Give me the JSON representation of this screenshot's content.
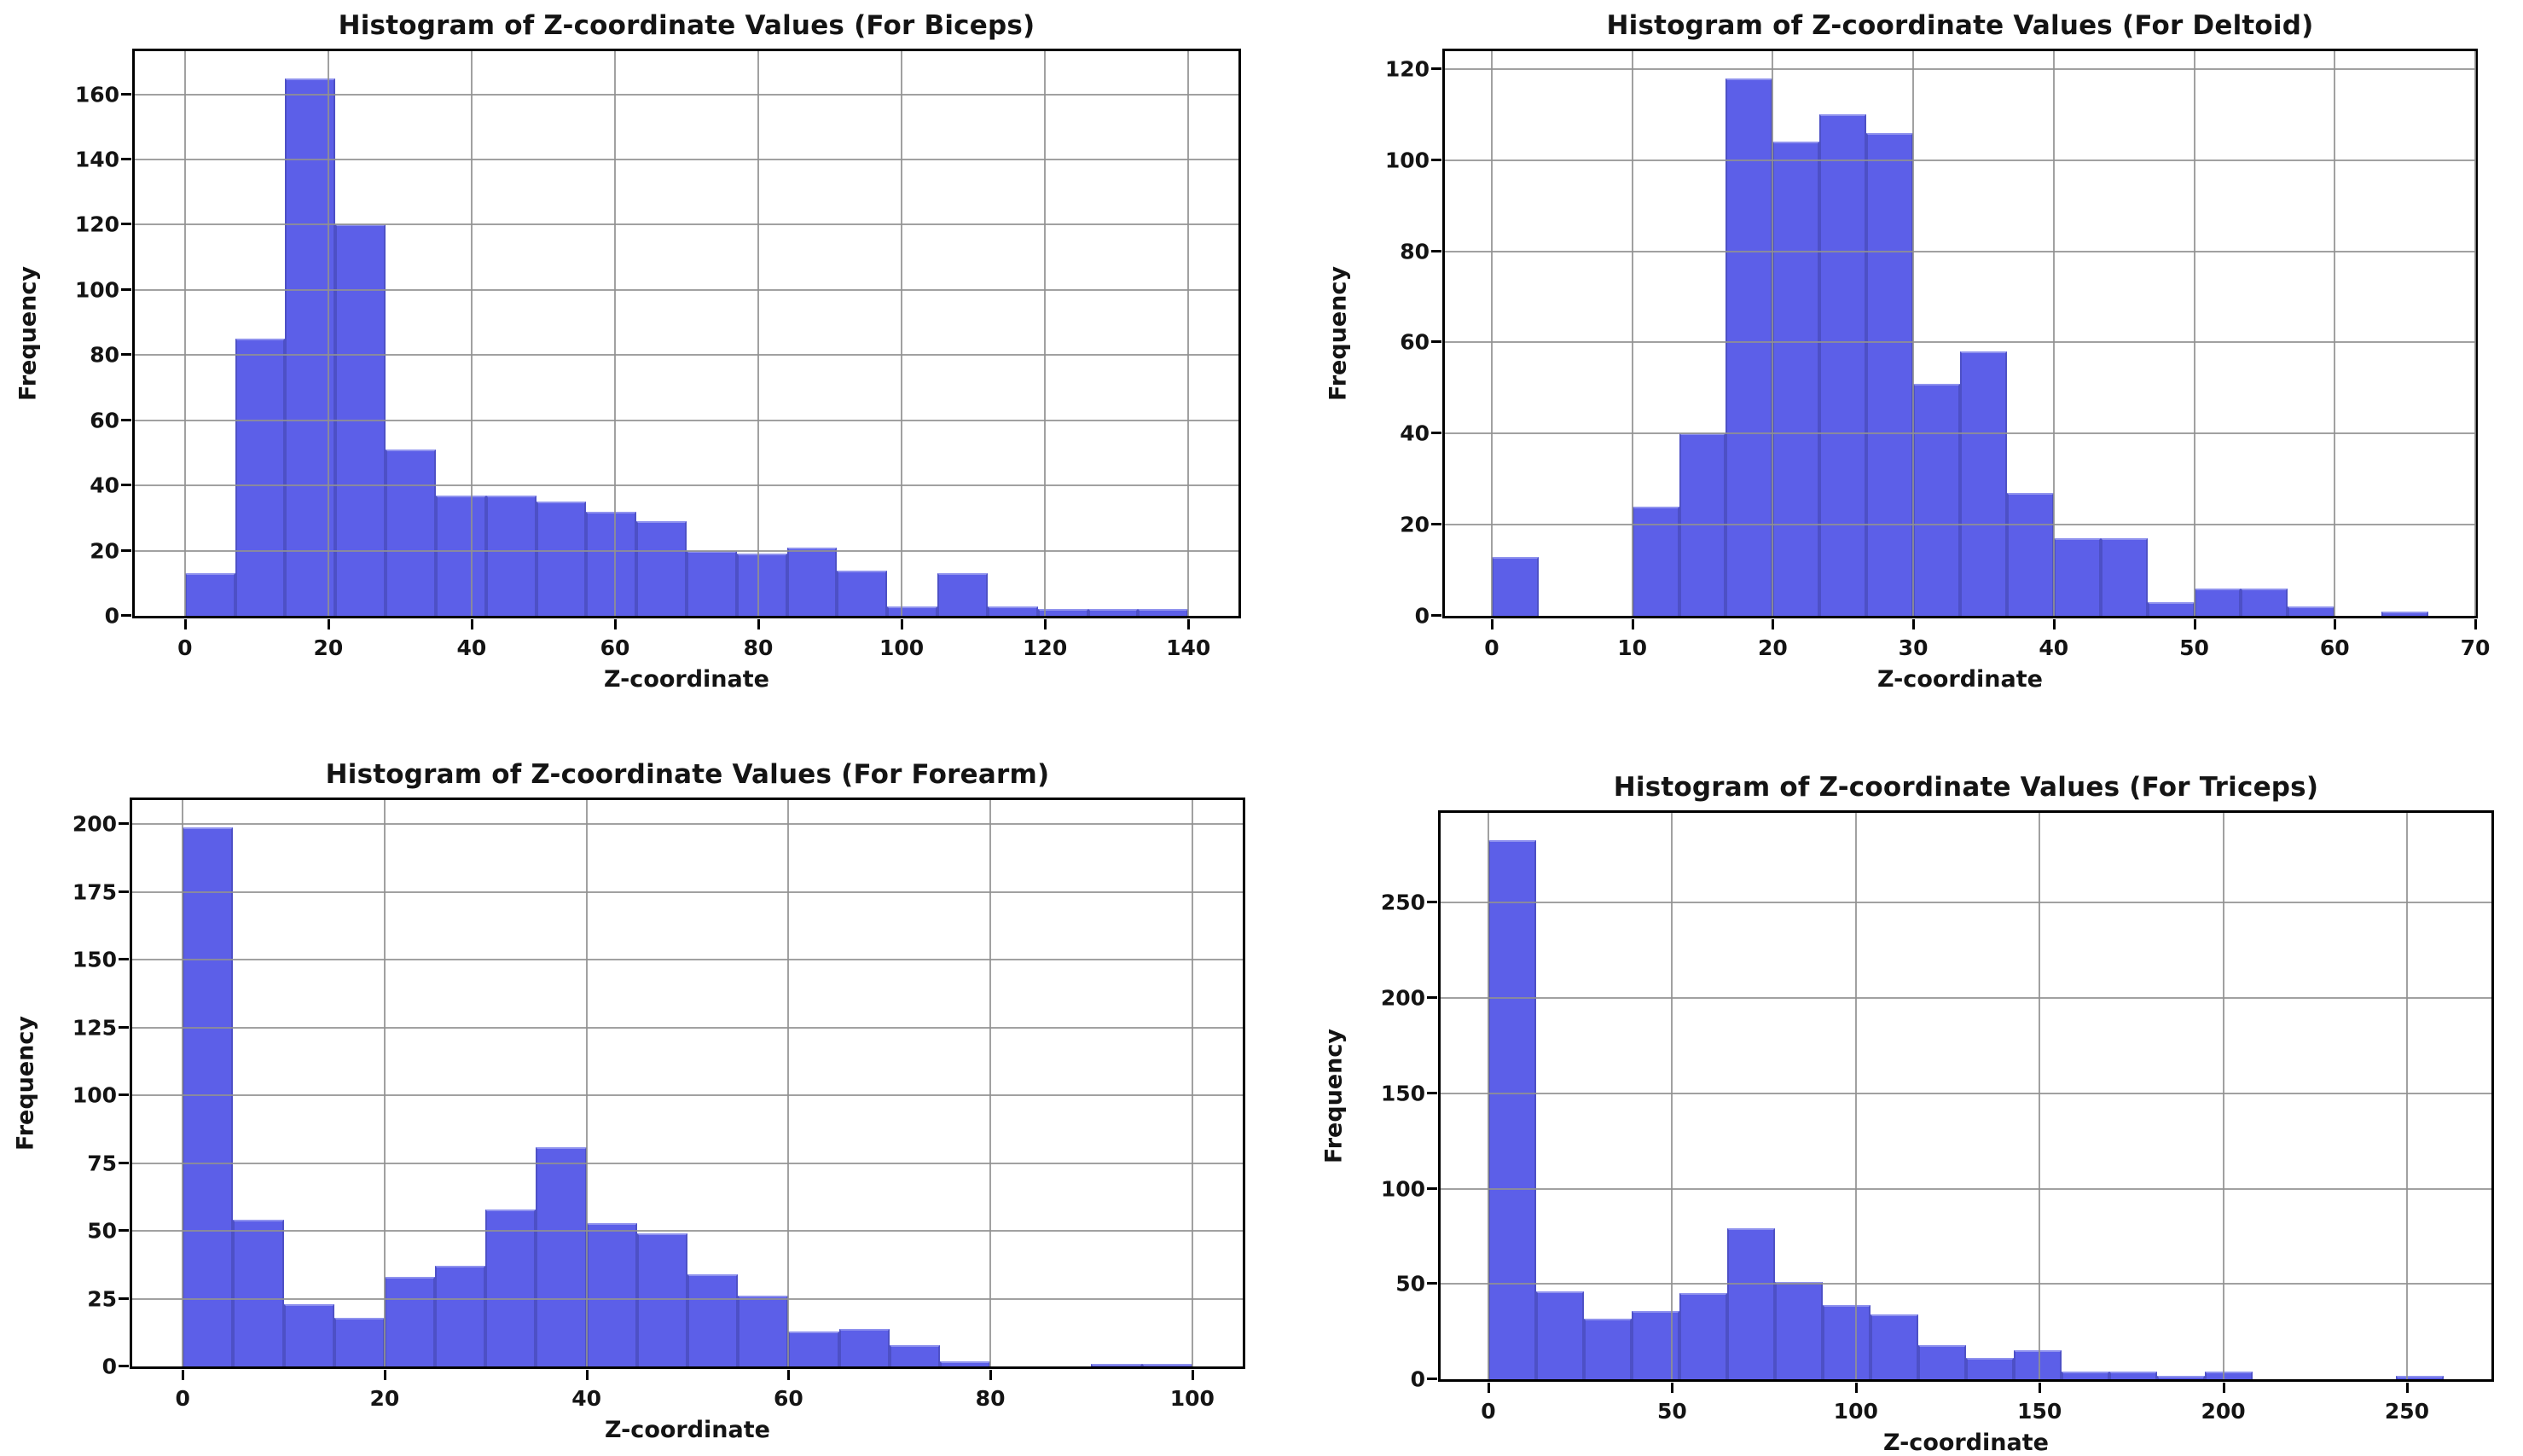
{
  "page": {
    "background": "#ffffff"
  },
  "styles": {
    "bar_fill": "#5c5fe8",
    "bar_edge": "#4d50c6",
    "bar_top_edge": "#8f92ee",
    "grid_color": "#919191",
    "spine_color": "#000000",
    "text_color": "#141414"
  },
  "chart_data": [
    {
      "type": "bar",
      "subtype": "histogram",
      "title": "Histogram of Z-coordinate Values (For Biceps)",
      "xlabel": "Z-coordinate",
      "ylabel": "Frequency",
      "bin_start": 0,
      "bin_width": 7,
      "values": [
        13,
        85,
        165,
        120,
        51,
        37,
        37,
        35,
        32,
        29,
        20,
        19,
        21,
        14,
        3,
        13,
        3,
        2,
        2,
        2
      ],
      "xticks": [
        0,
        20,
        40,
        60,
        80,
        100,
        120,
        140
      ],
      "yticks": [
        0,
        20,
        40,
        60,
        80,
        100,
        120,
        140,
        160
      ],
      "xlim": [
        -7,
        147
      ],
      "ylim": [
        0,
        173.25
      ],
      "grid": true,
      "legend": "none"
    },
    {
      "type": "bar",
      "subtype": "histogram",
      "title": "Histogram of Z-coordinate Values (For Deltoid)",
      "xlabel": "Z-coordinate",
      "ylabel": "Frequency",
      "bin_start": 0,
      "bin_width": 3.3333,
      "values": [
        13,
        0,
        0,
        24,
        40,
        118,
        104,
        110,
        106,
        51,
        58,
        27,
        17,
        17,
        3,
        6,
        6,
        2,
        0,
        1
      ],
      "xticks": [
        0,
        10,
        20,
        30,
        40,
        50,
        60,
        70
      ],
      "yticks": [
        0,
        20,
        40,
        60,
        80,
        100,
        120
      ],
      "xlim": [
        -3.3333,
        70
      ],
      "ylim": [
        0,
        123.9
      ],
      "grid": true,
      "legend": "none"
    },
    {
      "type": "bar",
      "subtype": "histogram",
      "title": "Histogram of Z-coordinate Values (For Forearm)",
      "xlabel": "Z-coordinate",
      "ylabel": "Frequency",
      "bin_start": 0,
      "bin_width": 5,
      "values": [
        199,
        54,
        23,
        18,
        33,
        37,
        58,
        81,
        53,
        49,
        34,
        26,
        13,
        14,
        8,
        2,
        0,
        0,
        1,
        1
      ],
      "xticks": [
        0,
        20,
        40,
        60,
        80,
        100
      ],
      "yticks": [
        0,
        25,
        50,
        75,
        100,
        125,
        150,
        175,
        200
      ],
      "xlim": [
        -5,
        105
      ],
      "ylim": [
        0,
        208.95
      ],
      "grid": true,
      "legend": "none"
    },
    {
      "type": "bar",
      "subtype": "histogram",
      "title": "Histogram of Z-coordinate Values (For Triceps)",
      "xlabel": "Z-coordinate",
      "ylabel": "Frequency",
      "bin_start": 0,
      "bin_width": 13,
      "values": [
        283,
        46,
        32,
        36,
        45,
        79,
        51,
        39,
        34,
        18,
        11,
        15,
        4,
        4,
        2,
        4,
        0,
        0,
        0,
        2
      ],
      "xticks": [
        0,
        50,
        100,
        150,
        200,
        250
      ],
      "yticks": [
        0,
        50,
        100,
        150,
        200,
        250
      ],
      "xlim": [
        -13,
        273
      ],
      "ylim": [
        0,
        297.15
      ],
      "grid": true,
      "legend": "none"
    }
  ]
}
